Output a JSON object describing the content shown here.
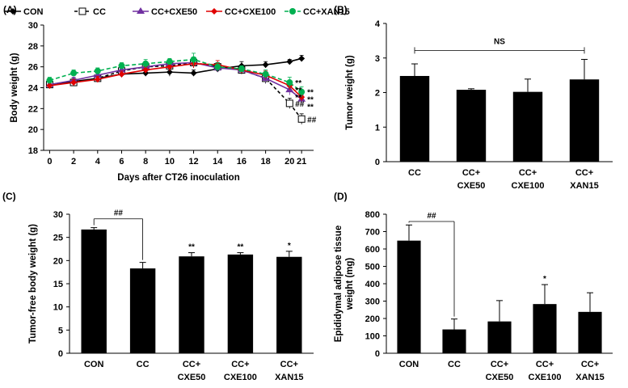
{
  "chart_data": [
    {
      "panel": "(A)",
      "type": "line",
      "title": "",
      "xlabel": "Days after CT26 inoculation",
      "ylabel": "Body weight (g)",
      "x": [
        0,
        2,
        4,
        6,
        8,
        10,
        12,
        14,
        16,
        18,
        20,
        21
      ],
      "ylim": [
        18,
        30
      ],
      "yticks": [
        18,
        20,
        22,
        24,
        26,
        28,
        30
      ],
      "legend": "top",
      "series": [
        {
          "name": "CON",
          "color": "#000000",
          "marker": "diamond",
          "dash": "",
          "values": [
            24.3,
            24.6,
            24.9,
            25.3,
            25.4,
            25.5,
            25.4,
            25.8,
            26.1,
            26.2,
            26.5,
            26.8
          ],
          "errors": [
            0.3,
            0.3,
            0.3,
            0.3,
            0.3,
            0.4,
            0.3,
            0.3,
            0.4,
            0.3,
            0.2,
            0.3
          ]
        },
        {
          "name": "CC",
          "color": "#000000",
          "marker": "square-open",
          "dash": "4,3",
          "values": [
            24.3,
            24.5,
            24.9,
            25.6,
            26.0,
            26.1,
            26.4,
            26.0,
            25.7,
            24.9,
            22.5,
            21.0
          ],
          "errors": [
            0.3,
            0.3,
            0.3,
            0.3,
            0.3,
            0.4,
            0.5,
            0.4,
            0.4,
            0.5,
            0.5,
            0.5
          ]
        },
        {
          "name": "CC+CXE50",
          "color": "#7030a0",
          "marker": "triangle",
          "dash": "",
          "values": [
            24.3,
            24.7,
            25.2,
            25.7,
            26.0,
            26.3,
            26.4,
            25.9,
            25.7,
            24.9,
            23.8,
            22.9
          ],
          "errors": [
            0.3,
            0.3,
            0.3,
            0.3,
            0.3,
            0.3,
            0.4,
            0.4,
            0.3,
            0.4,
            0.5,
            0.4
          ]
        },
        {
          "name": "CC+CXE100",
          "color": "#e00000",
          "marker": "diamond",
          "dash": "",
          "values": [
            24.2,
            24.5,
            24.8,
            25.3,
            25.7,
            26.0,
            26.3,
            26.2,
            25.7,
            25.2,
            24.2,
            23.1
          ],
          "errors": [
            0.3,
            0.3,
            0.3,
            0.3,
            0.3,
            0.4,
            0.4,
            0.4,
            0.3,
            0.4,
            0.4,
            0.4
          ]
        },
        {
          "name": "CC+XAN15",
          "color": "#00b050",
          "marker": "circle",
          "dash": "5,3",
          "values": [
            24.7,
            25.4,
            25.6,
            26.1,
            26.3,
            26.5,
            26.7,
            26.0,
            25.8,
            25.3,
            24.5,
            23.6
          ],
          "errors": [
            0.3,
            0.3,
            0.3,
            0.3,
            0.4,
            0.3,
            0.6,
            0.4,
            0.3,
            0.4,
            0.5,
            0.5
          ]
        }
      ],
      "annotations": [
        {
          "x": 20,
          "series": "CC",
          "text": "##"
        },
        {
          "x": 21,
          "series": "CC",
          "text": "##"
        },
        {
          "x": 20,
          "series": "CC+XAN15",
          "text": "**"
        },
        {
          "x": 20,
          "series": "CC+CXE100",
          "text": "**"
        },
        {
          "x": 20,
          "series": "CC+CXE50",
          "text": "**"
        },
        {
          "x": 21,
          "series": "CC+XAN15",
          "text": "**"
        },
        {
          "x": 21,
          "series": "CC+CXE100",
          "text": "**"
        },
        {
          "x": 21,
          "series": "CC+CXE50",
          "text": "**"
        }
      ]
    },
    {
      "panel": "(B)",
      "type": "bar",
      "title": "",
      "xlabel": "",
      "ylabel": "Tumor weight (g)",
      "categories": [
        [
          "CC"
        ],
        [
          "CC+",
          "CXE50"
        ],
        [
          "CC+",
          "CXE100"
        ],
        [
          "CC+",
          "XAN15"
        ]
      ],
      "values": [
        2.48,
        2.08,
        2.02,
        2.38
      ],
      "errors": [
        0.35,
        0.03,
        0.37,
        0.58
      ],
      "sig": [
        "",
        "",
        "",
        ""
      ],
      "ylim": [
        0,
        4
      ],
      "yticks": [
        0,
        1,
        2,
        3,
        4
      ],
      "bracket": {
        "from": 0,
        "to": 3,
        "y": 3.22,
        "text": "NS",
        "style": "flat"
      }
    },
    {
      "panel": "(C)",
      "type": "bar",
      "title": "",
      "xlabel": "",
      "ylabel": "Tumor-free body weight (g)",
      "categories": [
        [
          "CON"
        ],
        [
          "CC"
        ],
        [
          "CC+",
          "CXE50"
        ],
        [
          "CC+",
          "CXE100"
        ],
        [
          "CC+",
          "XAN15"
        ]
      ],
      "values": [
        26.7,
        18.3,
        20.9,
        21.3,
        20.8
      ],
      "errors": [
        0.4,
        1.3,
        0.8,
        0.4,
        1.2
      ],
      "sig": [
        "",
        "",
        "**",
        "**",
        "*"
      ],
      "ylim": [
        0,
        30
      ],
      "yticks": [
        0,
        5,
        10,
        15,
        20,
        25,
        30
      ],
      "bracket": {
        "from": 0,
        "to": 1,
        "y": 29.0,
        "text": "##",
        "style": "down"
      }
    },
    {
      "panel": "(D)",
      "type": "bar",
      "title": "",
      "xlabel": "",
      "ylabel": [
        "Epididymal adipose  tissue",
        "weight (mg)"
      ],
      "categories": [
        [
          "CON"
        ],
        [
          "CC"
        ],
        [
          "CC+",
          "CXE50"
        ],
        [
          "CC+",
          "CXE100"
        ],
        [
          "CC+",
          "XAN15"
        ]
      ],
      "values": [
        648,
        137,
        183,
        283,
        238
      ],
      "errors": [
        90,
        60,
        120,
        112,
        110
      ],
      "sig": [
        "",
        "",
        "",
        "*",
        ""
      ],
      "ylim": [
        0,
        800
      ],
      "yticks": [
        0,
        100,
        200,
        300,
        400,
        500,
        600,
        700,
        800
      ],
      "bracket": {
        "from": 0,
        "to": 1,
        "y": 758,
        "text": "##",
        "style": "down"
      }
    }
  ]
}
